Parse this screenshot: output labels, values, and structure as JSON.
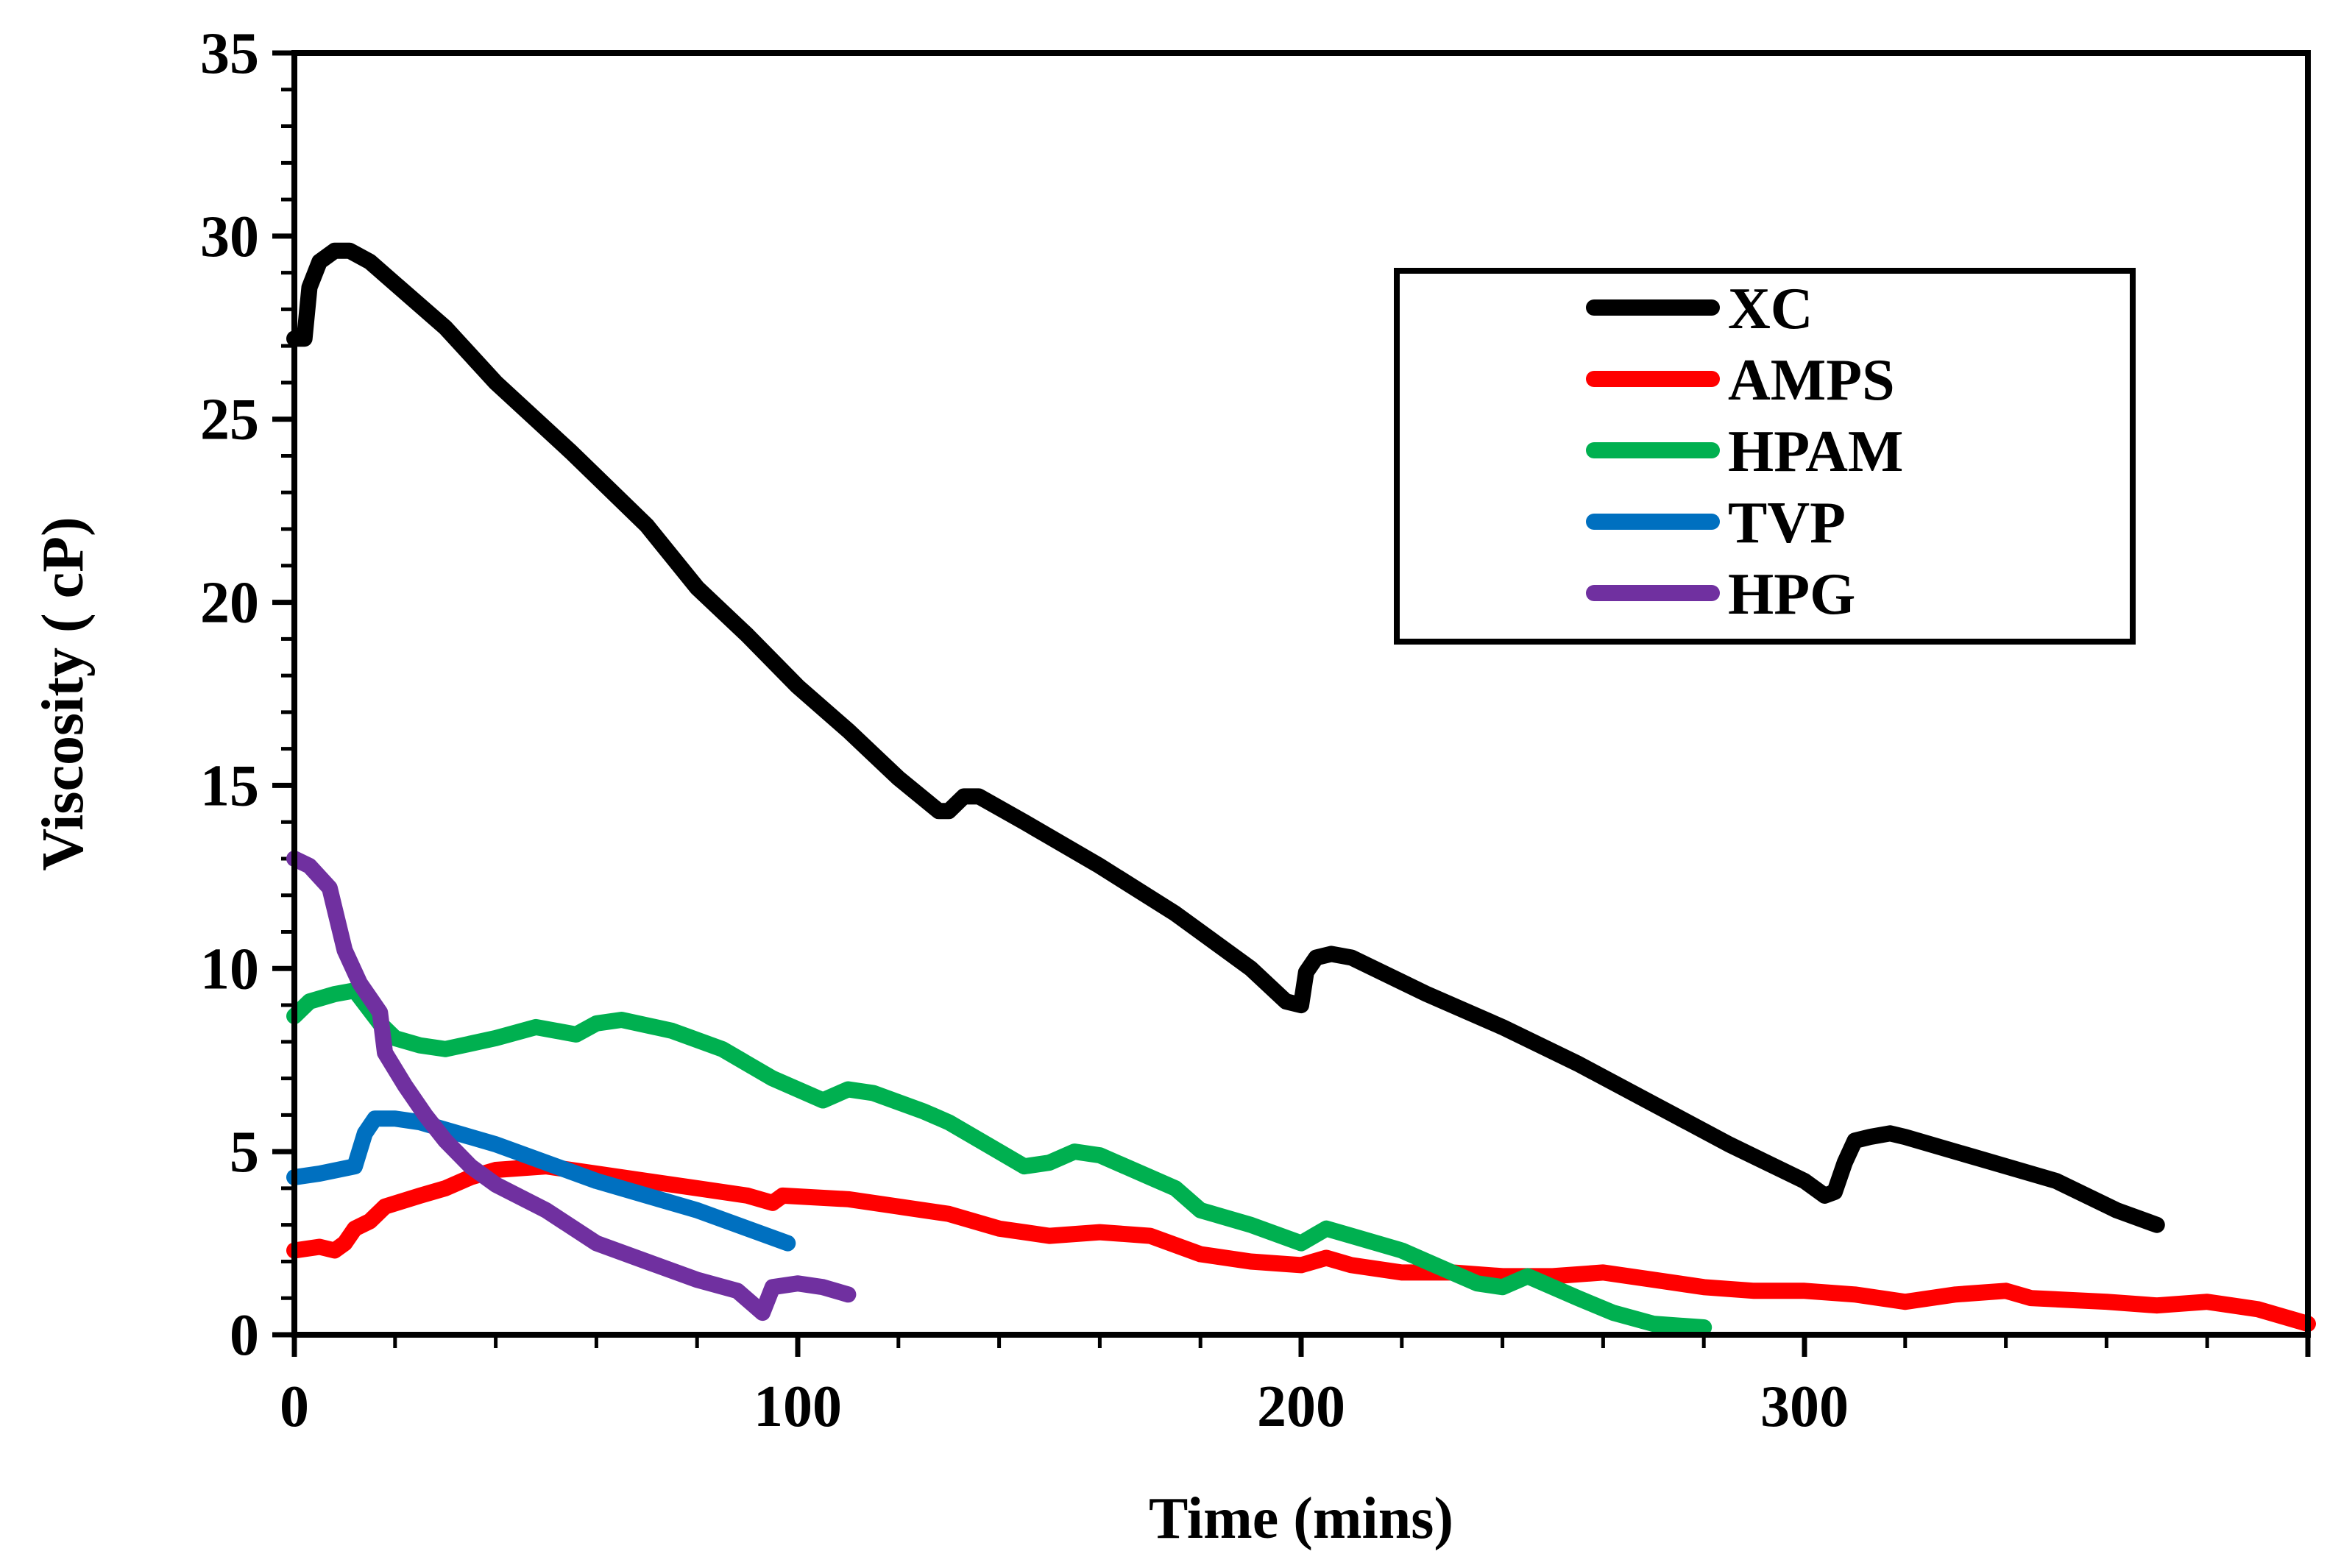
{
  "chart_data": {
    "type": "line",
    "title": "",
    "xlabel": "Time (mins)",
    "ylabel": "Viscosity ( cP)",
    "xlim": [
      0,
      400
    ],
    "ylim": [
      0,
      35
    ],
    "xticks": [
      0,
      100,
      200,
      300
    ],
    "yticks": [
      0,
      5,
      10,
      15,
      20,
      25,
      30,
      35
    ],
    "legend_position": "top-right",
    "series": [
      {
        "name": "XC",
        "color": "#000000",
        "points": [
          [
            0,
            27.2
          ],
          [
            2,
            27.2
          ],
          [
            3,
            28.6
          ],
          [
            5,
            29.3
          ],
          [
            8,
            29.6
          ],
          [
            11,
            29.6
          ],
          [
            15,
            29.3
          ],
          [
            20,
            28.7
          ],
          [
            30,
            27.5
          ],
          [
            40,
            26.0
          ],
          [
            55,
            24.1
          ],
          [
            70,
            22.1
          ],
          [
            80,
            20.4
          ],
          [
            90,
            19.1
          ],
          [
            100,
            17.7
          ],
          [
            110,
            16.5
          ],
          [
            120,
            15.2
          ],
          [
            128,
            14.3
          ],
          [
            130,
            14.3
          ],
          [
            133,
            14.7
          ],
          [
            136,
            14.7
          ],
          [
            145,
            14.0
          ],
          [
            160,
            12.8
          ],
          [
            175,
            11.5
          ],
          [
            190,
            10.0
          ],
          [
            197,
            9.1
          ],
          [
            200,
            9.0
          ],
          [
            201,
            9.9
          ],
          [
            203,
            10.3
          ],
          [
            206,
            10.4
          ],
          [
            210,
            10.3
          ],
          [
            225,
            9.3
          ],
          [
            240,
            8.4
          ],
          [
            255,
            7.4
          ],
          [
            270,
            6.3
          ],
          [
            285,
            5.2
          ],
          [
            300,
            4.2
          ],
          [
            304,
            3.8
          ],
          [
            306,
            3.9
          ],
          [
            308,
            4.7
          ],
          [
            310,
            5.3
          ],
          [
            313,
            5.4
          ],
          [
            317,
            5.5
          ],
          [
            320,
            5.4
          ],
          [
            335,
            4.8
          ],
          [
            350,
            4.2
          ],
          [
            362,
            3.4
          ],
          [
            370,
            3.0
          ]
        ]
      },
      {
        "name": "AMPS",
        "color": "#ff0000",
        "points": [
          [
            0,
            2.3
          ],
          [
            5,
            2.4
          ],
          [
            8,
            2.3
          ],
          [
            10,
            2.5
          ],
          [
            12,
            2.9
          ],
          [
            15,
            3.1
          ],
          [
            18,
            3.5
          ],
          [
            25,
            3.8
          ],
          [
            30,
            4.0
          ],
          [
            35,
            4.3
          ],
          [
            40,
            4.5
          ],
          [
            50,
            4.6
          ],
          [
            60,
            4.4
          ],
          [
            70,
            4.2
          ],
          [
            80,
            4.0
          ],
          [
            90,
            3.8
          ],
          [
            95,
            3.6
          ],
          [
            97,
            3.8
          ],
          [
            110,
            3.7
          ],
          [
            120,
            3.5
          ],
          [
            130,
            3.3
          ],
          [
            140,
            2.9
          ],
          [
            150,
            2.7
          ],
          [
            160,
            2.8
          ],
          [
            170,
            2.7
          ],
          [
            180,
            2.2
          ],
          [
            190,
            2.0
          ],
          [
            200,
            1.9
          ],
          [
            205,
            2.1
          ],
          [
            210,
            1.9
          ],
          [
            220,
            1.7
          ],
          [
            230,
            1.7
          ],
          [
            240,
            1.6
          ],
          [
            250,
            1.6
          ],
          [
            260,
            1.7
          ],
          [
            270,
            1.5
          ],
          [
            280,
            1.3
          ],
          [
            290,
            1.2
          ],
          [
            300,
            1.2
          ],
          [
            310,
            1.1
          ],
          [
            320,
            0.9
          ],
          [
            330,
            1.1
          ],
          [
            340,
            1.2
          ],
          [
            345,
            1.0
          ],
          [
            360,
            0.9
          ],
          [
            370,
            0.8
          ],
          [
            380,
            0.9
          ],
          [
            390,
            0.7
          ],
          [
            400,
            0.3
          ]
        ]
      },
      {
        "name": "HPAM",
        "color": "#00b050",
        "points": [
          [
            0,
            8.7
          ],
          [
            3,
            9.1
          ],
          [
            8,
            9.3
          ],
          [
            12,
            9.4
          ],
          [
            17,
            8.5
          ],
          [
            20,
            8.1
          ],
          [
            25,
            7.9
          ],
          [
            30,
            7.8
          ],
          [
            40,
            8.1
          ],
          [
            48,
            8.4
          ],
          [
            52,
            8.3
          ],
          [
            56,
            8.2
          ],
          [
            60,
            8.5
          ],
          [
            65,
            8.6
          ],
          [
            75,
            8.3
          ],
          [
            85,
            7.8
          ],
          [
            95,
            7.0
          ],
          [
            105,
            6.4
          ],
          [
            110,
            6.7
          ],
          [
            115,
            6.6
          ],
          [
            125,
            6.1
          ],
          [
            130,
            5.8
          ],
          [
            140,
            5.0
          ],
          [
            145,
            4.6
          ],
          [
            150,
            4.7
          ],
          [
            155,
            5.0
          ],
          [
            160,
            4.9
          ],
          [
            170,
            4.3
          ],
          [
            175,
            4.0
          ],
          [
            180,
            3.4
          ],
          [
            190,
            3.0
          ],
          [
            200,
            2.5
          ],
          [
            205,
            2.9
          ],
          [
            210,
            2.7
          ],
          [
            220,
            2.3
          ],
          [
            225,
            2.0
          ],
          [
            235,
            1.4
          ],
          [
            240,
            1.3
          ],
          [
            245,
            1.6
          ],
          [
            255,
            1.0
          ],
          [
            262,
            0.6
          ],
          [
            270,
            0.3
          ],
          [
            280,
            0.2
          ]
        ]
      },
      {
        "name": "TVP",
        "color": "#0070c0",
        "points": [
          [
            0,
            4.3
          ],
          [
            5,
            4.4
          ],
          [
            12,
            4.6
          ],
          [
            14,
            5.5
          ],
          [
            16,
            5.9
          ],
          [
            20,
            5.9
          ],
          [
            25,
            5.8
          ],
          [
            30,
            5.6
          ],
          [
            40,
            5.2
          ],
          [
            50,
            4.7
          ],
          [
            60,
            4.2
          ],
          [
            70,
            3.8
          ],
          [
            80,
            3.4
          ],
          [
            90,
            2.9
          ],
          [
            98,
            2.5
          ]
        ]
      },
      {
        "name": "HPG",
        "color": "#7030a0",
        "points": [
          [
            0,
            13.0
          ],
          [
            3,
            12.8
          ],
          [
            7,
            12.2
          ],
          [
            10,
            10.5
          ],
          [
            13,
            9.6
          ],
          [
            17,
            8.8
          ],
          [
            18,
            7.7
          ],
          [
            22,
            6.8
          ],
          [
            26,
            6.0
          ],
          [
            30,
            5.3
          ],
          [
            35,
            4.6
          ],
          [
            40,
            4.1
          ],
          [
            50,
            3.4
          ],
          [
            60,
            2.5
          ],
          [
            70,
            2.0
          ],
          [
            80,
            1.5
          ],
          [
            88,
            1.2
          ],
          [
            93,
            0.6
          ],
          [
            95,
            1.3
          ],
          [
            100,
            1.4
          ],
          [
            105,
            1.3
          ],
          [
            110,
            1.1
          ]
        ]
      }
    ]
  }
}
